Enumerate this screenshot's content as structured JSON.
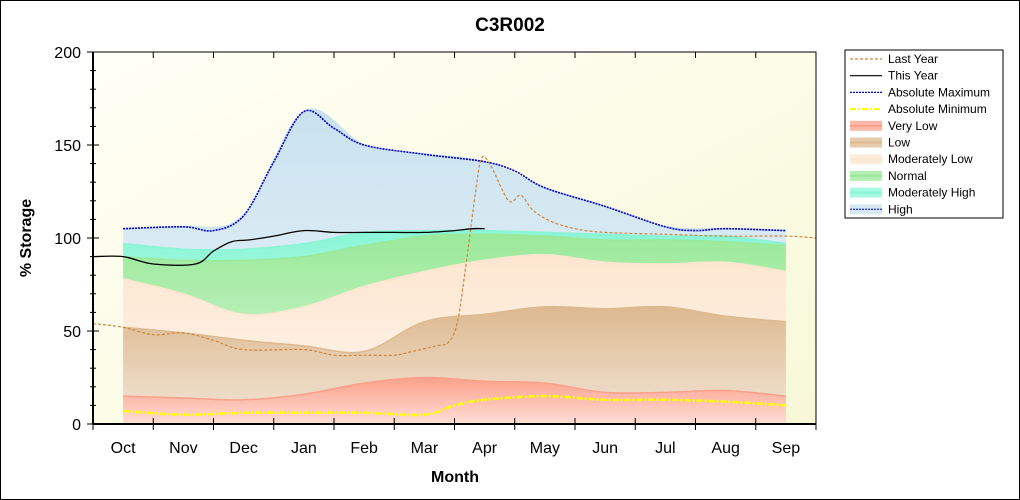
{
  "chart_data": {
    "type": "area",
    "title": "C3R002",
    "xlabel": "Month",
    "ylabel": "% Storage",
    "xlim": [
      0,
      12
    ],
    "ylim": [
      0,
      200
    ],
    "yticks": [
      0,
      50,
      100,
      150,
      200
    ],
    "categories": [
      "Oct",
      "Nov",
      "Dec",
      "Jan",
      "Feb",
      "Mar",
      "Apr",
      "May",
      "Jun",
      "Jul",
      "Aug",
      "Sep"
    ],
    "grid": false,
    "legend_position": "right",
    "band_x": [
      0.5,
      1.5,
      2.5,
      3.5,
      4.5,
      5.5,
      6.5,
      7.5,
      8.5,
      9.5,
      10.5,
      11.5
    ],
    "bands": [
      {
        "name": "High",
        "color": "#c9e2ef",
        "upper": [
          105,
          106,
          112,
          168,
          150,
          145,
          141,
          127,
          117,
          106,
          105,
          104
        ]
      },
      {
        "name": "Moderately High",
        "color": "#8af5d6",
        "upper": [
          97,
          94,
          94,
          97,
          103,
          104,
          104,
          103,
          102,
          101,
          101,
          97
        ]
      },
      {
        "name": "Normal",
        "color": "#9ae99a",
        "upper": [
          90,
          88,
          88,
          90,
          96,
          101,
          102,
          101,
          99,
          99,
          98,
          96
        ]
      },
      {
        "name": "Moderately Low",
        "color": "#fde6cf",
        "upper": [
          78,
          70,
          59,
          63,
          74,
          82,
          88,
          91,
          87,
          86,
          87,
          82
        ]
      },
      {
        "name": "Low",
        "color": "#ddb990",
        "upper": [
          52,
          49,
          45,
          42,
          39,
          55,
          59,
          63,
          62,
          63,
          58,
          55
        ]
      },
      {
        "name": "Very Low",
        "color": "#fba08a",
        "upper": [
          15,
          14,
          13,
          16,
          22,
          25,
          23,
          22,
          17,
          17,
          18,
          15
        ]
      }
    ],
    "series": [
      {
        "name": "Last Year",
        "color": "#cd853f",
        "style": "dashed",
        "x": [
          0,
          0.5,
          1.0,
          1.5,
          2.0,
          2.5,
          3.5,
          4.0,
          4.5,
          5.0,
          5.3,
          5.7,
          5.9,
          6.05,
          6.2,
          6.35,
          6.45,
          6.6,
          6.9,
          7.1,
          7.3,
          7.6,
          8.0,
          8.5,
          9.5,
          10.5,
          11.5,
          12.0
        ],
        "values": [
          54,
          52,
          48,
          49,
          45,
          40,
          40,
          37,
          37,
          37,
          39,
          42,
          44,
          55,
          88,
          125,
          143,
          139,
          120,
          123,
          115,
          109,
          105,
          103,
          102,
          101,
          101,
          100
        ]
      },
      {
        "name": "This Year",
        "color": "#000000",
        "style": "solid",
        "x": [
          0,
          0.5,
          1.0,
          1.7,
          2.0,
          2.3,
          2.6,
          3.0,
          3.5,
          4.0,
          4.5,
          5.0,
          5.5,
          6.0,
          6.3,
          6.5
        ],
        "values": [
          90,
          90,
          86,
          86,
          93,
          98,
          99,
          101,
          104,
          103,
          103,
          103,
          103,
          104,
          105,
          105
        ]
      },
      {
        "name": "Absolute Maximum",
        "color": "#0000cd",
        "style": "dotted",
        "x": [
          0.5,
          1.5,
          2.0,
          2.5,
          3.0,
          3.5,
          4.0,
          4.5,
          5.5,
          6.5,
          7.0,
          7.5,
          8.5,
          9.5,
          10.0,
          10.5,
          11.5
        ],
        "values": [
          105,
          106,
          104,
          112,
          141,
          168,
          159,
          150,
          145,
          141,
          136,
          127,
          117,
          106,
          104,
          105,
          104
        ]
      },
      {
        "name": "Absolute Minimum",
        "color": "#ffff00",
        "style": "dashdot",
        "x": [
          0.5,
          1.5,
          2.5,
          3.5,
          4.5,
          5.5,
          6.0,
          6.5,
          7.5,
          8.5,
          9.5,
          10.5,
          11.5
        ],
        "values": [
          7,
          5,
          6,
          6,
          6,
          5,
          10,
          13,
          15,
          13,
          13,
          12,
          10
        ]
      }
    ],
    "legend": [
      "Last Year",
      "This Year",
      "Absolute Maximum",
      "Absolute Minimum",
      "Very Low",
      "Low",
      "Moderately Low",
      "Normal",
      "Moderately High",
      "High"
    ]
  }
}
